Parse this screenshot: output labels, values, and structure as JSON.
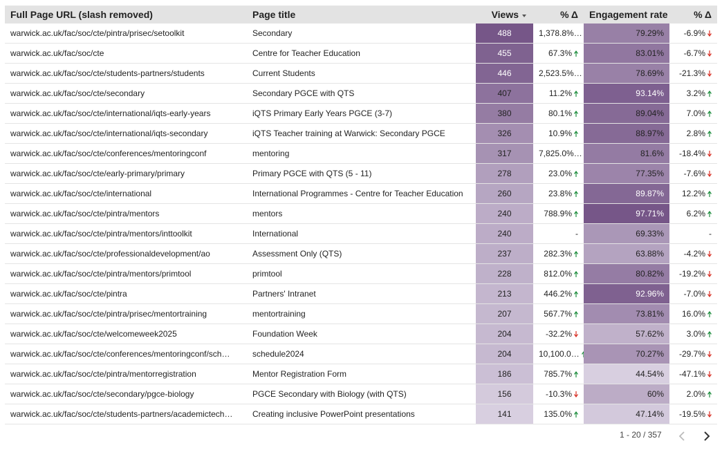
{
  "table": {
    "headers": [
      "Full Page URL (slash removed)",
      "Page title",
      "Views",
      "% Δ",
      "Engagement rate",
      "% Δ"
    ],
    "rows": [
      [
        "warwick.ac.uk/fac/soc/cte/pintra/prisec/setoolkit",
        "Secondary",
        "488",
        "1,378.8%…",
        "79.29%",
        "-6.9%"
      ],
      [
        "warwick.ac.uk/fac/soc/cte",
        "Centre for Teacher Education",
        "455",
        "67.3%",
        "83.01%",
        "-6.7%"
      ],
      [
        "warwick.ac.uk/fac/soc/cte/students-partners/students",
        "Current Students",
        "446",
        "2,523.5%…",
        "78.69%",
        "-21.3%"
      ],
      [
        "warwick.ac.uk/fac/soc/cte/secondary",
        "Secondary PGCE with QTS",
        "407",
        "11.2%",
        "93.14%",
        "3.2%"
      ],
      [
        "warwick.ac.uk/fac/soc/cte/international/iqts-early-years",
        "iQTS Primary Early Years PGCE (3-7)",
        "380",
        "80.1%",
        "89.04%",
        "7.0%"
      ],
      [
        "warwick.ac.uk/fac/soc/cte/international/iqts-secondary",
        "iQTS Teacher training at Warwick: Secondary PGCE",
        "326",
        "10.9%",
        "88.97%",
        "2.8%"
      ],
      [
        "warwick.ac.uk/fac/soc/cte/conferences/mentoringconf",
        "mentoring",
        "317",
        "7,825.0%…",
        "81.6%",
        "-18.4%"
      ],
      [
        "warwick.ac.uk/fac/soc/cte/early-primary/primary",
        "Primary PGCE with QTS (5 - 11)",
        "278",
        "23.0%",
        "77.35%",
        "-7.6%"
      ],
      [
        "warwick.ac.uk/fac/soc/cte/international",
        "International Programmes - Centre for Teacher Education",
        "260",
        "23.8%",
        "89.87%",
        "12.2%"
      ],
      [
        "warwick.ac.uk/fac/soc/cte/pintra/mentors",
        "mentors",
        "240",
        "788.9%",
        "97.71%",
        "6.2%"
      ],
      [
        "warwick.ac.uk/fac/soc/cte/pintra/mentors/inttoolkit",
        "International",
        "240",
        "-",
        "69.33%",
        "-"
      ],
      [
        "warwick.ac.uk/fac/soc/cte/professionaldevelopment/ao",
        "Assessment Only (QTS)",
        "237",
        "282.3%",
        "63.88%",
        "-4.2%"
      ],
      [
        "warwick.ac.uk/fac/soc/cte/pintra/mentors/primtool",
        "primtool",
        "228",
        "812.0%",
        "80.82%",
        "-19.2%"
      ],
      [
        "warwick.ac.uk/fac/soc/cte/pintra",
        "Partners' Intranet",
        "213",
        "446.2%",
        "92.96%",
        "-7.0%"
      ],
      [
        "warwick.ac.uk/fac/soc/cte/pintra/prisec/mentortraining",
        "mentortraining",
        "207",
        "567.7%",
        "73.81%",
        "16.0%"
      ],
      [
        "warwick.ac.uk/fac/soc/cte/welcomeweek2025",
        "Foundation Week",
        "204",
        "-32.2%",
        "57.62%",
        "3.0%"
      ],
      [
        "warwick.ac.uk/fac/soc/cte/conferences/mentoringconf/sch…",
        "schedule2024",
        "204",
        "10,100.0…",
        "70.27%",
        "-29.7%"
      ],
      [
        "warwick.ac.uk/fac/soc/cte/pintra/mentorregistration",
        "Mentor Registration Form",
        "186",
        "785.7%",
        "44.54%",
        "-47.1%"
      ],
      [
        "warwick.ac.uk/fac/soc/cte/secondary/pgce-biology",
        "PGCE Secondary with Biology (with QTS)",
        "156",
        "-10.3%",
        "60%",
        "2.0%"
      ],
      [
        "warwick.ac.uk/fac/soc/cte/students-partners/academictech…",
        "Creating inclusive PowerPoint presentations",
        "141",
        "135.0%",
        "47.14%",
        "-19.5%"
      ]
    ]
  },
  "pagination": "1 - 20 / 357"
}
